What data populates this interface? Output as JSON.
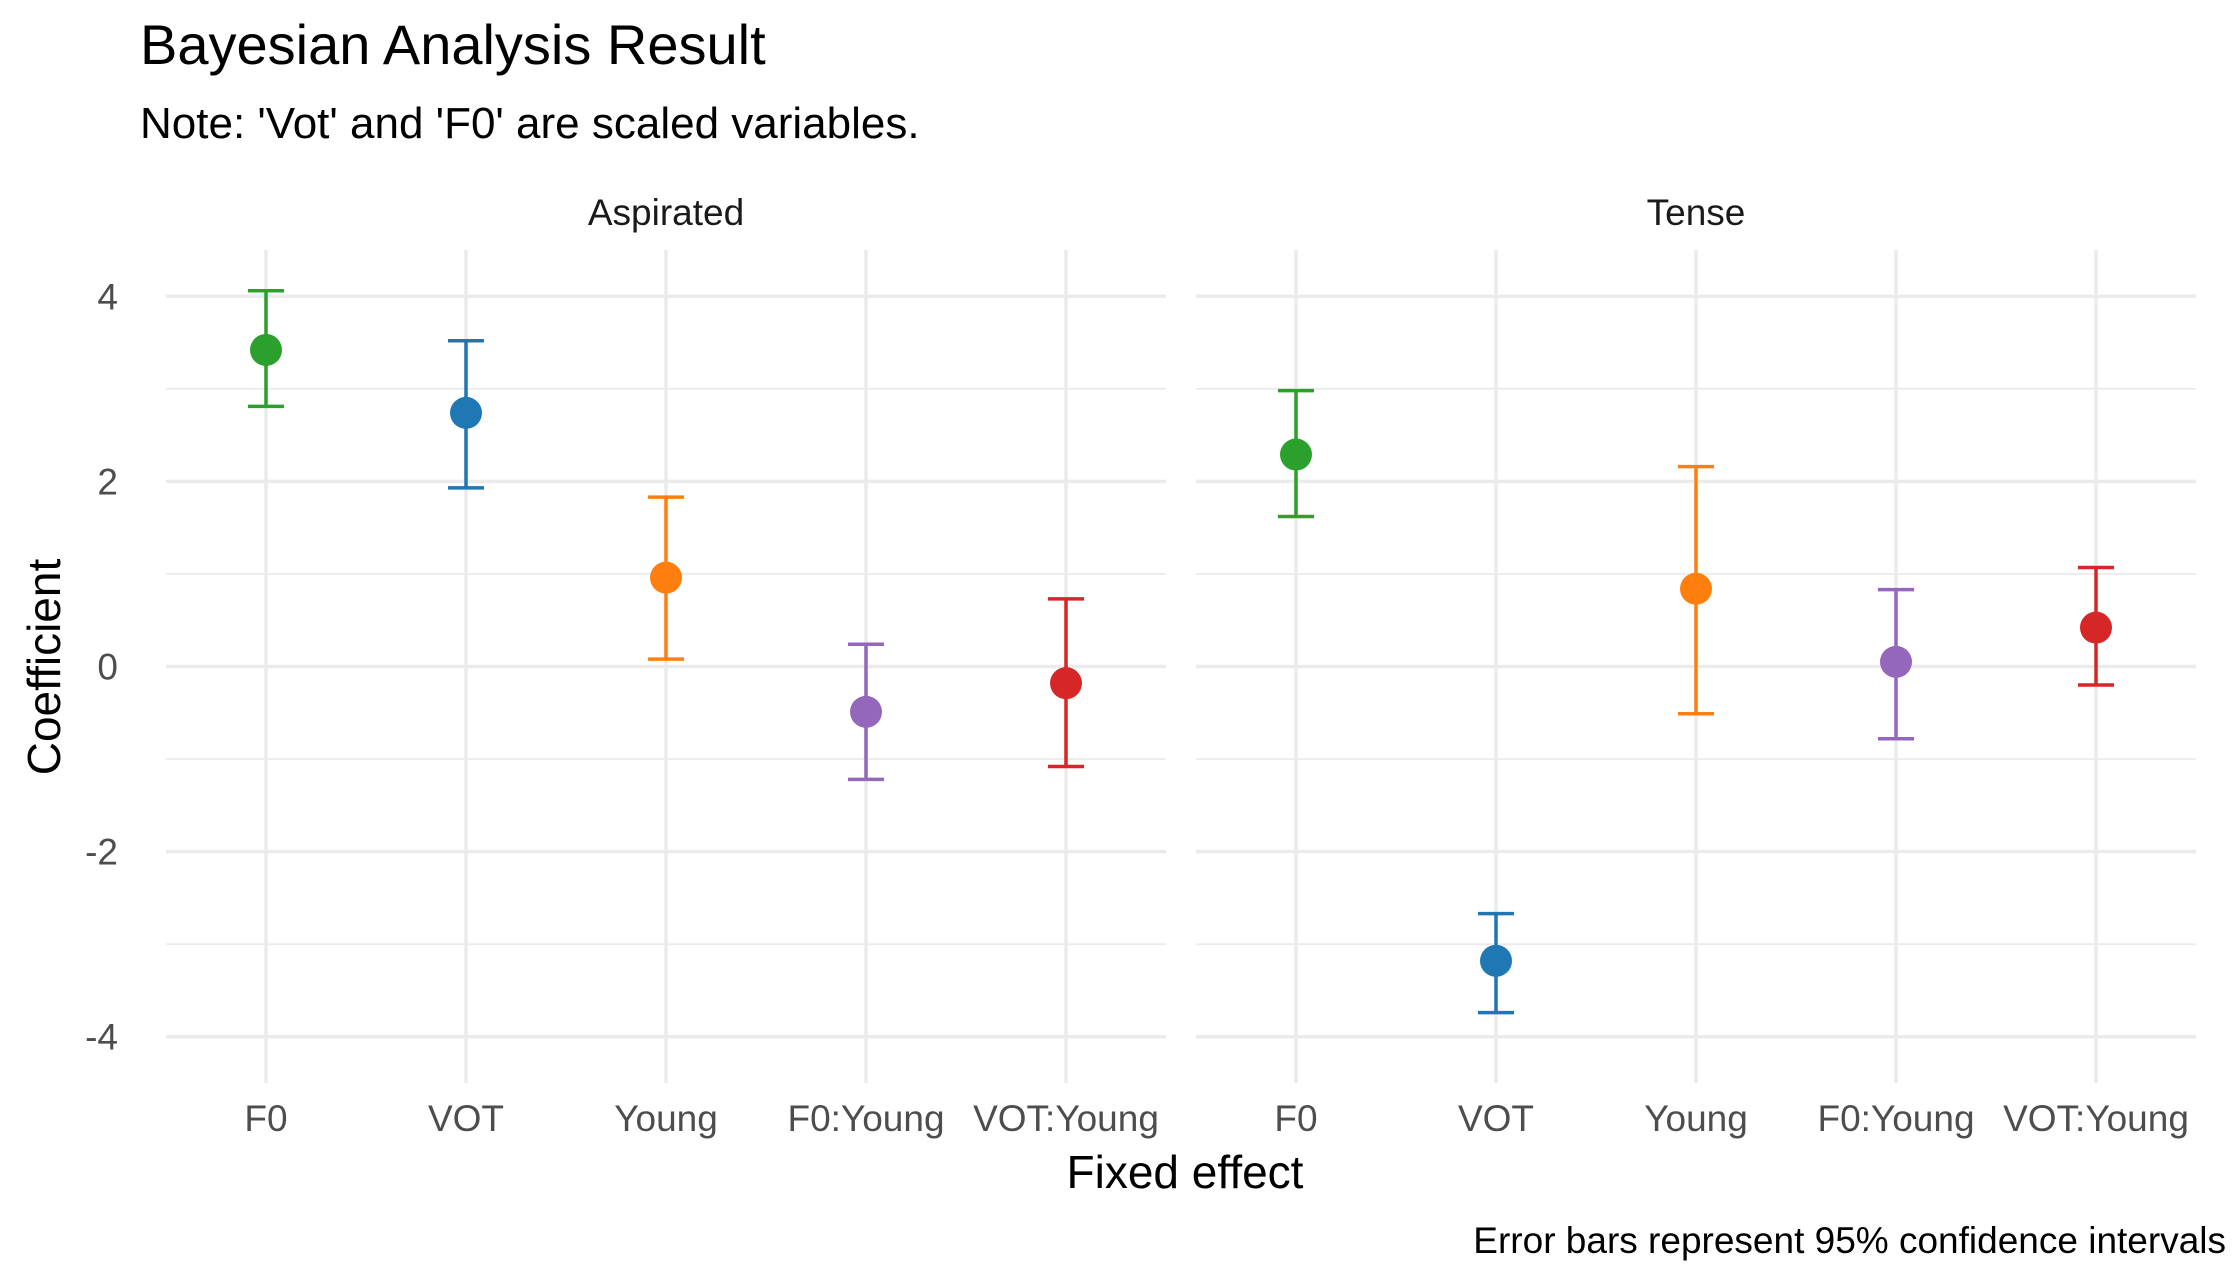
{
  "chart_data": {
    "type": "scatter",
    "title": "Bayesian Analysis Result",
    "subtitle": "Note: 'Vot' and 'F0' are scaled variables.",
    "xlabel": "Fixed effect",
    "ylabel": "Coefficient",
    "caption": "Error bars represent 95% confidence intervals",
    "categories": [
      "F0",
      "VOT",
      "Young",
      "F0:Young",
      "VOT:Young"
    ],
    "ylim": [
      -4.5,
      4.5
    ],
    "yticks": [
      -4,
      -2,
      0,
      2,
      4
    ],
    "ytick_labels": [
      "-4",
      "-2",
      "0",
      "2",
      "4"
    ],
    "grid": true,
    "legend": "none",
    "colors": {
      "F0": "#2ca02c",
      "VOT": "#1f77b4",
      "Young": "#ff7f0e",
      "F0:Young": "#9467bd",
      "VOT:Young": "#d62728"
    },
    "panels": [
      {
        "name": "Aspirated",
        "points": [
          {
            "term": "F0",
            "estimate": 3.42,
            "lower": 2.81,
            "upper": 4.06
          },
          {
            "term": "VOT",
            "estimate": 2.74,
            "lower": 1.93,
            "upper": 3.52
          },
          {
            "term": "Young",
            "estimate": 0.96,
            "lower": 0.08,
            "upper": 1.83
          },
          {
            "term": "F0:Young",
            "estimate": -0.49,
            "lower": -1.22,
            "upper": 0.24
          },
          {
            "term": "VOT:Young",
            "estimate": -0.18,
            "lower": -1.08,
            "upper": 0.73
          }
        ]
      },
      {
        "name": "Tense",
        "points": [
          {
            "term": "F0",
            "estimate": 2.29,
            "lower": 1.62,
            "upper": 2.98
          },
          {
            "term": "VOT",
            "estimate": -3.18,
            "lower": -3.74,
            "upper": -2.67
          },
          {
            "term": "Young",
            "estimate": 0.84,
            "lower": -0.51,
            "upper": 2.16
          },
          {
            "term": "F0:Young",
            "estimate": 0.05,
            "lower": -0.78,
            "upper": 0.83
          },
          {
            "term": "VOT:Young",
            "estimate": 0.42,
            "lower": -0.2,
            "upper": 1.07
          }
        ]
      }
    ]
  }
}
